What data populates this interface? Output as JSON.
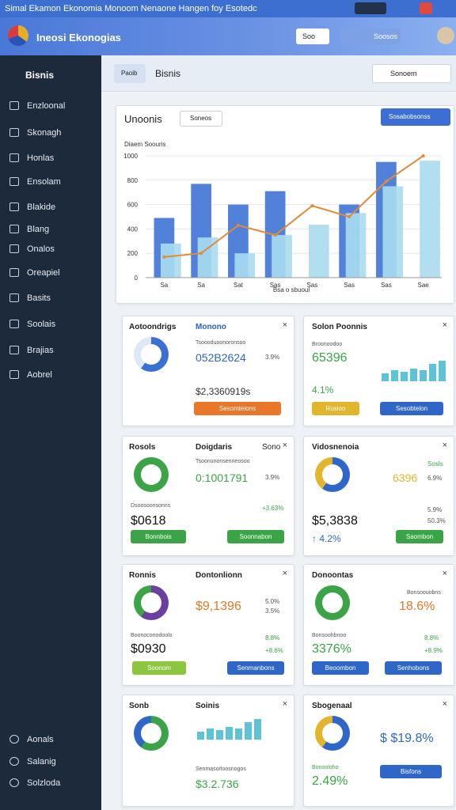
{
  "title_bar": {
    "text": "Simal Ekamon Ekonomia Monoom Nenaone Hangen foy Esotedc"
  },
  "header": {
    "app_name": "Ineosi Ekonogias",
    "search_button": "Soo",
    "account_button": "Soosos"
  },
  "sidebar": {
    "section": "Bisnis",
    "items": [
      "Enzloonal",
      "Skonagh",
      "Honlas",
      "Ensolam",
      "Blakide",
      "Blang",
      "Onalos",
      "Oreapiel",
      "Basits",
      "Soolais",
      "Brajias",
      "Aobrel"
    ],
    "footer_items": [
      "Aonals",
      "Salanig",
      "Solzloda"
    ]
  },
  "toolbar": {
    "tab": "Paoib",
    "title": "Bisnis",
    "search": "Sonoem"
  },
  "overview": {
    "title": "Unoonis",
    "filter": "Soneos",
    "dropdown": "Sosabobsonss"
  },
  "chart_data": {
    "type": "combo",
    "title": "Diaem Soouris",
    "x_label": "Bsa o sbuoul",
    "categories": [
      "Sa",
      "Sa",
      "Sat",
      "Sas",
      "Sas",
      "Sas",
      "Sas",
      "Sae"
    ],
    "series": [
      {
        "type": "bar",
        "color": "#3f73d6",
        "values": [
          490,
          770,
          600,
          710,
          null,
          600,
          950,
          null
        ]
      },
      {
        "type": "bar",
        "color": "#a9dcee",
        "values": [
          280,
          330,
          200,
          350,
          435,
          530,
          750,
          960
        ]
      },
      {
        "type": "line",
        "color": "#e08a3c",
        "values": [
          170,
          200,
          430,
          350,
          590,
          500,
          790,
          1000
        ]
      }
    ],
    "ylim": [
      0,
      1000
    ],
    "yticks": [
      0,
      200,
      400,
      600,
      800,
      1000
    ],
    "grid": true
  },
  "cards": [
    {
      "title": "Aotoondrigs",
      "tab": "Monono",
      "caption": "Tsoooduoonoronsoo",
      "value": "052B2624",
      "change": "3.9%",
      "value2": "$2,3360919s",
      "button": "Sesomtelons"
    },
    {
      "title": "Solon Poonnis",
      "caption": "Broonoodoo",
      "value": "65396",
      "change": "4.1%",
      "button1": "Rusioo",
      "button2": "Sesobtelon"
    },
    {
      "title": "Rosols",
      "tab": "Doigdaris",
      "select": "Sono",
      "caption": "Tsoonunonsenneosoo",
      "value": "0:1001791",
      "change": "3.9%",
      "caption2": "Dsoosoonsonns",
      "change2": "+3.63%",
      "value2": "$0618",
      "button1": "Bonnbois",
      "button2": "Soonnabon"
    },
    {
      "title": "Vidosnenoia",
      "caption": "Sosls",
      "value": "6396",
      "change": "6.9%",
      "change2": "5.9%",
      "value2": "$5,3838",
      "change3": "50.3%",
      "trend": "↑ 4.2%",
      "button": "Saombon"
    },
    {
      "title": "Ronnis",
      "tab": "Dontonlionn",
      "value": "$9,1396",
      "change": "5.0%",
      "change2": "3.5%",
      "caption": "Boonoconodoolo",
      "change3": "8.8%",
      "value2": "$0930",
      "change4": "+8.6%",
      "button1": "Soonom",
      "button2": "Senmanbons"
    },
    {
      "title": "Donoontas",
      "caption": "Bonsoouobns",
      "value": "18.6%",
      "caption2": "Bonsoohbnoo",
      "change": "8.8%",
      "value2": "3376%",
      "change2": "+8.9%",
      "button1": "Beoombon",
      "button2": "Senhobons"
    },
    {
      "title": "Sonb",
      "tab": "Soinis",
      "caption": "Senmasorloosnogos",
      "value": "$3.2.736"
    },
    {
      "title": "Sbogenaal",
      "value": "$ $19.8%",
      "caption": "Bonooloho",
      "value2": "2.49%",
      "button": "Bisfons"
    }
  ]
}
